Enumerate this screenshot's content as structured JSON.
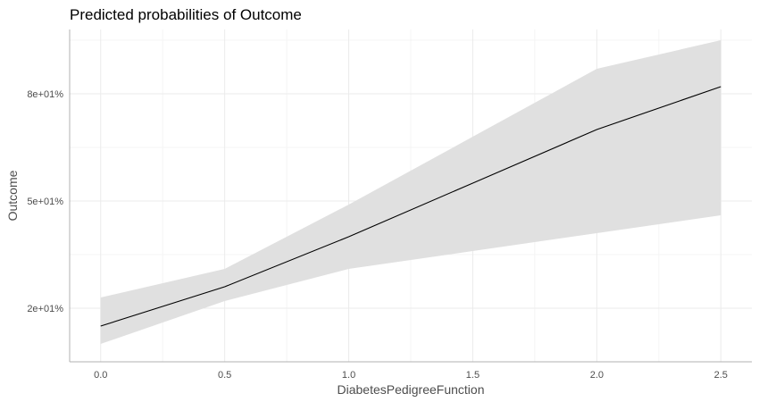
{
  "chart_data": {
    "type": "line",
    "title": "Predicted probabilities of Outcome",
    "xlabel": "DiabetesPedigreeFunction",
    "ylabel": "Outcome",
    "x_ticks": [
      0.0,
      0.5,
      1.0,
      1.5,
      2.0,
      2.5
    ],
    "x_tick_labels": [
      "0.0",
      "0.5",
      "1.0",
      "1.5",
      "2.0",
      "2.5"
    ],
    "y_ticks": [
      0.2,
      0.5,
      0.8
    ],
    "y_tick_labels": [
      "2e+01%",
      "5e+01%",
      "8e+01%"
    ],
    "xlim": [
      -0.125,
      2.625
    ],
    "ylim": [
      0.05,
      0.98
    ],
    "grid": true,
    "series": [
      {
        "x": [
          0.0,
          0.5,
          1.0,
          1.5,
          2.0,
          2.5
        ],
        "y": [
          0.15,
          0.26,
          0.4,
          0.55,
          0.7,
          0.82
        ],
        "conf_low": [
          0.1,
          0.22,
          0.31,
          0.36,
          0.41,
          0.46
        ],
        "conf_high": [
          0.23,
          0.31,
          0.49,
          0.68,
          0.87,
          0.95
        ]
      }
    ],
    "colors": {
      "line": "#000000",
      "band": "#e0e0e0"
    }
  }
}
